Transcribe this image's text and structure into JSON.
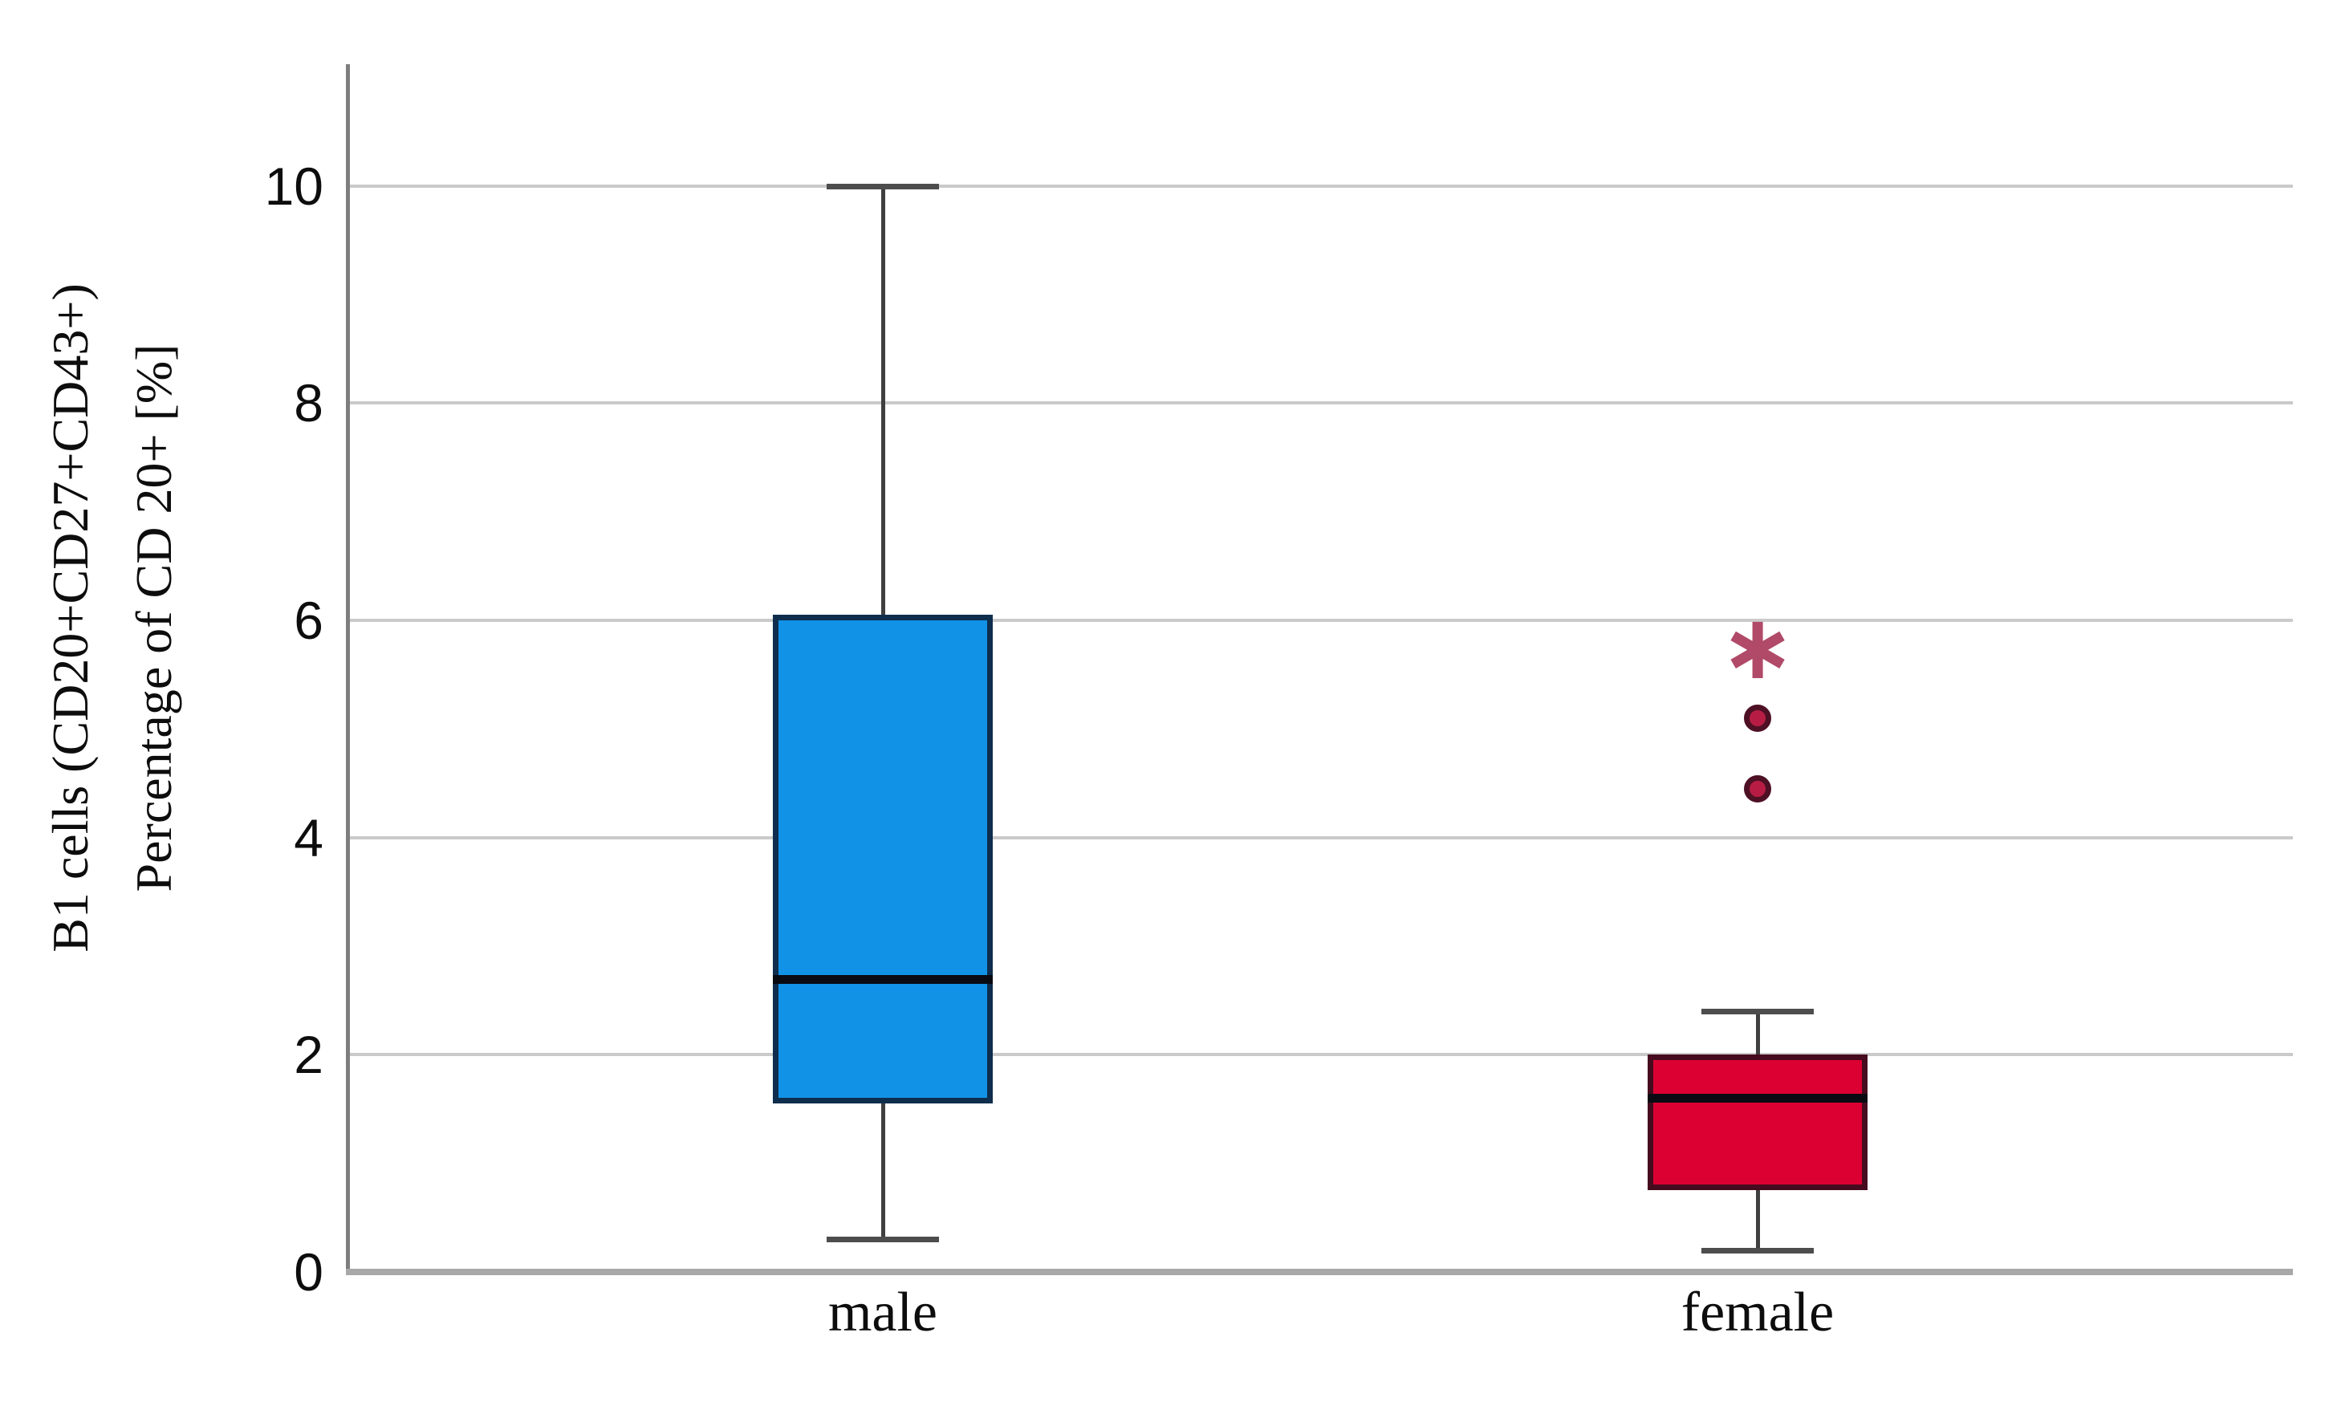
{
  "figure": {
    "background": "#ffffff"
  },
  "chart_data": {
    "type": "boxplot",
    "title": "",
    "categories": [
      "male",
      "female"
    ],
    "ylabel_lines": [
      "B1 cells (CD20+CD27+CD43+)",
      "Percentage of CD 20+ [%]"
    ],
    "xlabel": "",
    "yticks": [
      0,
      2,
      4,
      6,
      8,
      10
    ],
    "ylim": [
      0,
      11.12
    ],
    "grid": "horizontal",
    "legend": "none",
    "series": [
      {
        "name": "male",
        "whisker_low": 0.3,
        "q1": 1.55,
        "median": 2.7,
        "q3": 6.05,
        "whisker_high": 10.0,
        "outliers": [],
        "extremes": [],
        "fill": "#1192E6",
        "border": "#0F2D4D"
      },
      {
        "name": "female",
        "whisker_low": 0.2,
        "q1": 0.75,
        "median": 1.6,
        "q3": 2.0,
        "whisker_high": 2.4,
        "outliers": [
          4.45,
          5.1
        ],
        "extremes": [
          5.75
        ],
        "fill": "#DC0032",
        "border": "#460B1E"
      }
    ],
    "marker_colors": {
      "outlier_fill": "#B71D44",
      "outlier_edge": "#4E1024",
      "extreme_star": "#B04A68"
    },
    "line_colors": {
      "gridline": "#CACACA",
      "x_axis": "#A8A8A8",
      "y_axis": "#7E7E7E",
      "whisker": "#3F3F3F",
      "median": "#0A0A12"
    }
  }
}
